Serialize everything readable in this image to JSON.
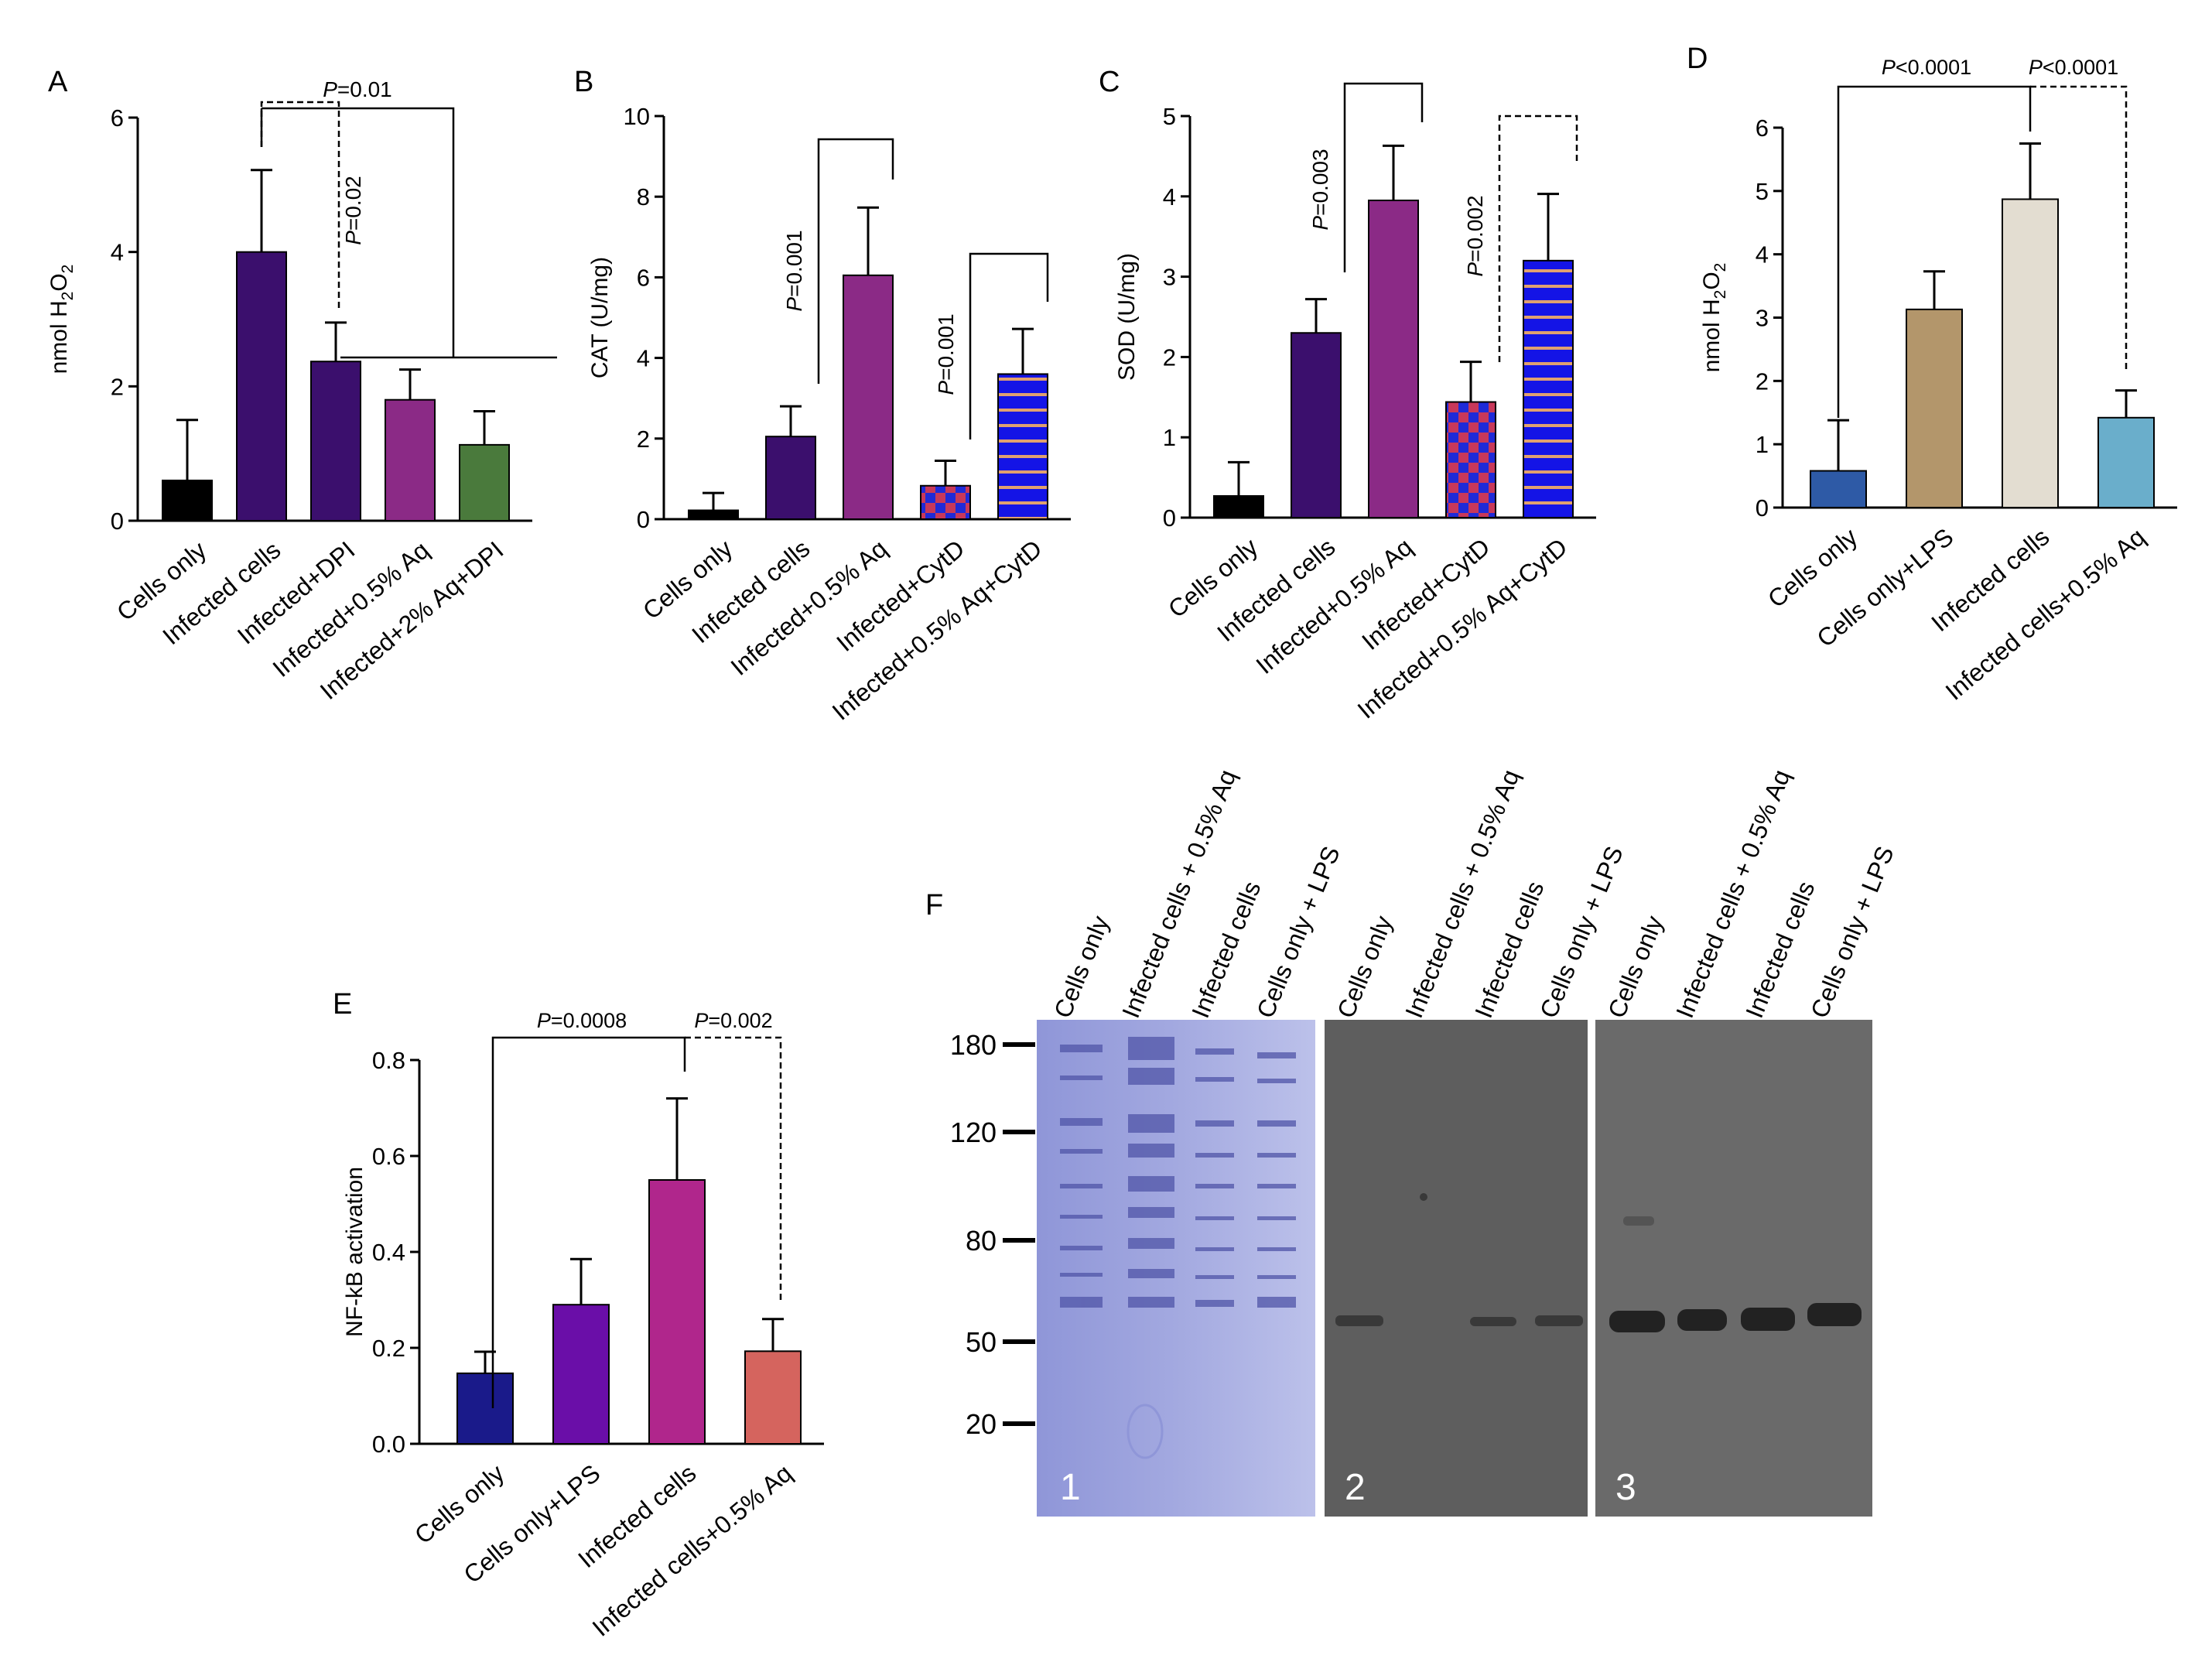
{
  "panels": {
    "A": {
      "letter": "A",
      "chart_data": {
        "type": "bar",
        "ylabel_prefix": "nmol H",
        "ylabel_sub1": "2",
        "ylabel_mid": "O",
        "ylabel_sub2": "2",
        "ylim": [
          0,
          6
        ],
        "yticks": [
          "0",
          "2",
          "4",
          "6"
        ],
        "categories": [
          "Cells only",
          "Infected cells",
          "Infected+DPI",
          "Infected+0.5% Aq",
          "Infected+2% Aq+DPI"
        ],
        "values": [
          0.6,
          4.0,
          2.37,
          1.8,
          1.13
        ],
        "errors": [
          0.9,
          1.22,
          0.58,
          0.45,
          0.5
        ],
        "colors": [
          "#000000",
          "#3b0f6d",
          "#3b0f6d",
          "#8b2a86",
          "#4a7a3c"
        ],
        "annotations": [
          {
            "label": "=0.01",
            "p": "P"
          },
          {
            "label": "=0.02",
            "p": "P"
          }
        ]
      }
    },
    "B": {
      "letter": "B",
      "chart_data": {
        "type": "bar",
        "ylabel": "CAT (U/mg)",
        "ylim": [
          0,
          10
        ],
        "yticks": [
          "0",
          "2",
          "4",
          "6",
          "8",
          "10"
        ],
        "categories": [
          "Cells only",
          "Infected cells",
          "Infected+0.5% Aq",
          "Infected+CytD",
          "Infected+0.5% Aq+CytD"
        ],
        "values": [
          0.22,
          2.05,
          6.05,
          0.83,
          3.6
        ],
        "errors": [
          0.43,
          0.75,
          1.68,
          0.62,
          1.12
        ],
        "colors": [
          "#000000",
          "#3b0f6d",
          "#8b2a86",
          "checker",
          "stripe"
        ],
        "annotations": [
          {
            "label": "=0.001",
            "p": "P"
          },
          {
            "label": "=0.001",
            "p": "P"
          }
        ]
      }
    },
    "C": {
      "letter": "C",
      "chart_data": {
        "type": "bar",
        "ylabel": "SOD (U/mg)",
        "ylim": [
          0,
          5
        ],
        "yticks": [
          "0",
          "1",
          "2",
          "3",
          "4",
          "5"
        ],
        "categories": [
          "Cells only",
          "Infected cells",
          "Infected+0.5% Aq",
          "Infected+CytD",
          "Infected+0.5% Aq+CytD"
        ],
        "values": [
          0.27,
          2.3,
          3.95,
          1.44,
          3.2
        ],
        "errors": [
          0.42,
          0.42,
          0.68,
          0.5,
          0.83
        ],
        "colors": [
          "#000000",
          "#3b0f6d",
          "#8b2a86",
          "checker",
          "stripe"
        ],
        "annotations": [
          {
            "label": "=0.003",
            "p": "P"
          },
          {
            "label": "=0.002",
            "p": "P"
          }
        ]
      }
    },
    "D": {
      "letter": "D",
      "chart_data": {
        "type": "bar",
        "ylabel_prefix": "nmol H",
        "ylabel_sub1": "2",
        "ylabel_mid": "O",
        "ylabel_sub2": "2",
        "ylim": [
          0,
          6
        ],
        "yticks": [
          "0",
          "1",
          "2",
          "3",
          "4",
          "5",
          "6"
        ],
        "categories": [
          "Cells only",
          "Cells only+LPS",
          "Infected cells",
          "Infected cells+0.5% Aq"
        ],
        "values": [
          0.58,
          3.13,
          4.87,
          1.42
        ],
        "errors": [
          0.8,
          0.6,
          0.88,
          0.43
        ],
        "colors": [
          "#2e5aa6",
          "#b3966b",
          "#e3ddd1",
          "#6aaecb"
        ],
        "annotations": [
          {
            "label": "<0.0001",
            "p": "P"
          },
          {
            "label": "<0.0001",
            "p": "P"
          }
        ]
      }
    },
    "E": {
      "letter": "E",
      "chart_data": {
        "type": "bar",
        "ylabel": "NF-kB activation",
        "ylim": [
          0,
          0.8
        ],
        "yticks": [
          "0.0",
          "0.2",
          "0.4",
          "0.6",
          "0.8"
        ],
        "categories": [
          "Cells only",
          "Cells only+LPS",
          "Infected cells",
          "Infected cells+0.5% Aq"
        ],
        "values": [
          0.147,
          0.29,
          0.55,
          0.193
        ],
        "errors": [
          0.045,
          0.095,
          0.17,
          0.067
        ],
        "colors": [
          "#1a1a8a",
          "#6a0ea8",
          "#b0268c",
          "#d5645e"
        ],
        "annotations": [
          {
            "label": "=0.0008",
            "p": "P"
          },
          {
            "label": "=0.002",
            "p": "P"
          }
        ]
      }
    }
  },
  "gel": {
    "letter": "F",
    "markers": [
      "180",
      "120",
      "80",
      "50",
      "20"
    ],
    "panel_numbers": [
      "1",
      "2",
      "3"
    ],
    "lanes": [
      "Cells only",
      "Infected cells + 0.5% Aq",
      "Infected cells",
      "Cells only + LPS"
    ]
  }
}
